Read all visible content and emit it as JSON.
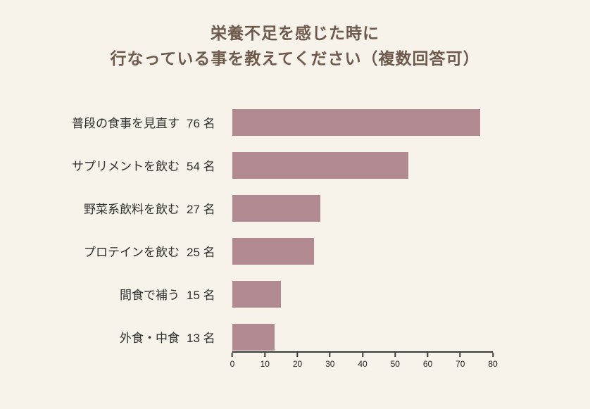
{
  "title": {
    "line1": "栄養不足を感じた時に",
    "line2": "行なっている事を教えてください（複数回答可）"
  },
  "chart_data": {
    "type": "bar",
    "orientation": "horizontal",
    "title": "栄養不足を感じた時に行なっている事を教えてください（複数回答可）",
    "categories": [
      "普段の食事を見直す",
      "サプリメントを飲む",
      "野菜系飲料を飲む",
      "プロテインを飲む",
      "間食で補う",
      "外食・中食"
    ],
    "values": [
      76,
      54,
      27,
      25,
      15,
      13
    ],
    "value_labels": [
      "76 名",
      "54 名",
      "27 名",
      "25 名",
      "15 名",
      "13 名"
    ],
    "unit": "名",
    "xlabel": "",
    "ylabel": "",
    "xlim": [
      0,
      80
    ],
    "x_ticks": [
      0,
      10,
      20,
      30,
      40,
      50,
      60,
      70,
      80
    ],
    "grid": false,
    "legend": false,
    "bar_color": "#b08a90"
  },
  "colors": {
    "background": "#f8f3ea",
    "bar": "#b08a90",
    "title_text": "#6e5a4c",
    "label_text": "#2e2e2e",
    "axis": "#3a3a3a"
  }
}
